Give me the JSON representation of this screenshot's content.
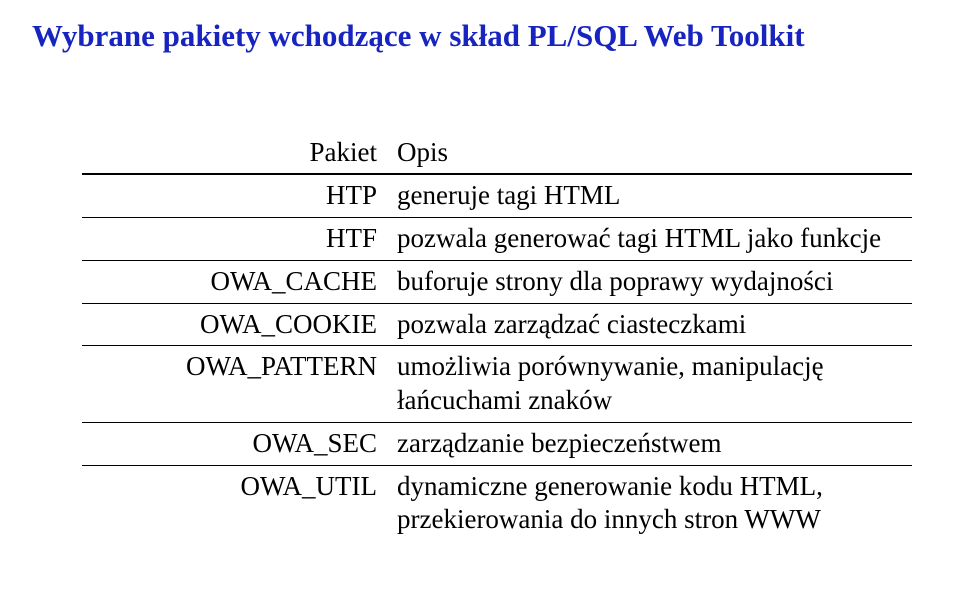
{
  "title": "Wybrane pakiety wchodzące w skład PL/SQL Web Toolkit",
  "table": {
    "header": {
      "left": "Pakiet",
      "right": "Opis"
    },
    "rows": [
      {
        "left": "HTP",
        "right": "generuje tagi HTML"
      },
      {
        "left": "HTF",
        "right": "pozwala generować tagi HTML jako funkcje"
      },
      {
        "left": "OWA_CACHE",
        "right": "buforuje strony dla poprawy wydajności"
      },
      {
        "left": "OWA_COOKIE",
        "right": "pozwala zarządzać ciasteczkami"
      },
      {
        "left": "OWA_PATTERN",
        "right": "umożliwia porównywanie, manipulację łańcuchami znaków"
      },
      {
        "left": "OWA_SEC",
        "right": "zarządzanie bezpieczeństwem"
      },
      {
        "left": "OWA_UTIL",
        "right": "dynamiczne generowanie kodu HTML, przekierowania do innych stron WWW"
      }
    ]
  }
}
